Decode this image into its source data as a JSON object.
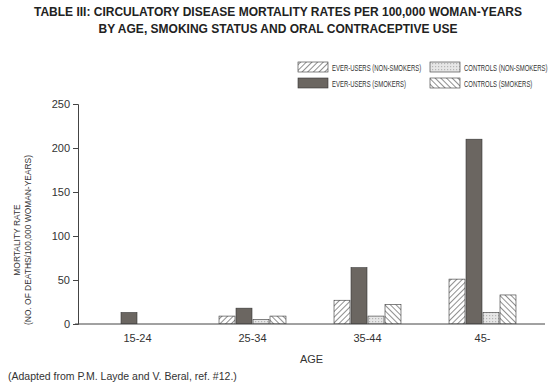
{
  "chart_data": {
    "type": "bar",
    "title": [
      "TABLE III: CIRCULATORY DISEASE MORTALITY RATES PER 100,000 WOMAN-YEARS",
      "BY AGE, SMOKING STATUS AND ORAL CONTRACEPTIVE USE"
    ],
    "x_label": "AGE",
    "y_label": [
      "MORTALITY RATE",
      "(NO. OF DEATHS/100,000 WOMAN-YEARS)"
    ],
    "source": "(Adapted from P.M. Layde and V. Beral, ref. #12.)",
    "categories": [
      "15-24",
      "25-34",
      "35-44",
      "45-"
    ],
    "series": [
      {
        "name": "EVER-USERS (NON-SMOKERS)",
        "color": "#333333",
        "values": [
          null,
          9,
          27,
          51
        ]
      },
      {
        "name": "EVER-USERS (SMOKERS)",
        "color": "#6b6661",
        "values": [
          13,
          18,
          64,
          210
        ]
      },
      {
        "name": "CONTROLS (NON-SMOKERS)",
        "color": "#b5b5b5",
        "values": [
          null,
          5,
          9,
          13
        ]
      },
      {
        "name": "CONTROLS (SMOKERS)",
        "color": "#333333",
        "values": [
          null,
          9,
          22,
          33
        ]
      }
    ],
    "ylim": [
      0,
      250
    ],
    "yticks": [
      0,
      50,
      100,
      150,
      200,
      250
    ],
    "grid": false,
    "legend": "top-right"
  }
}
